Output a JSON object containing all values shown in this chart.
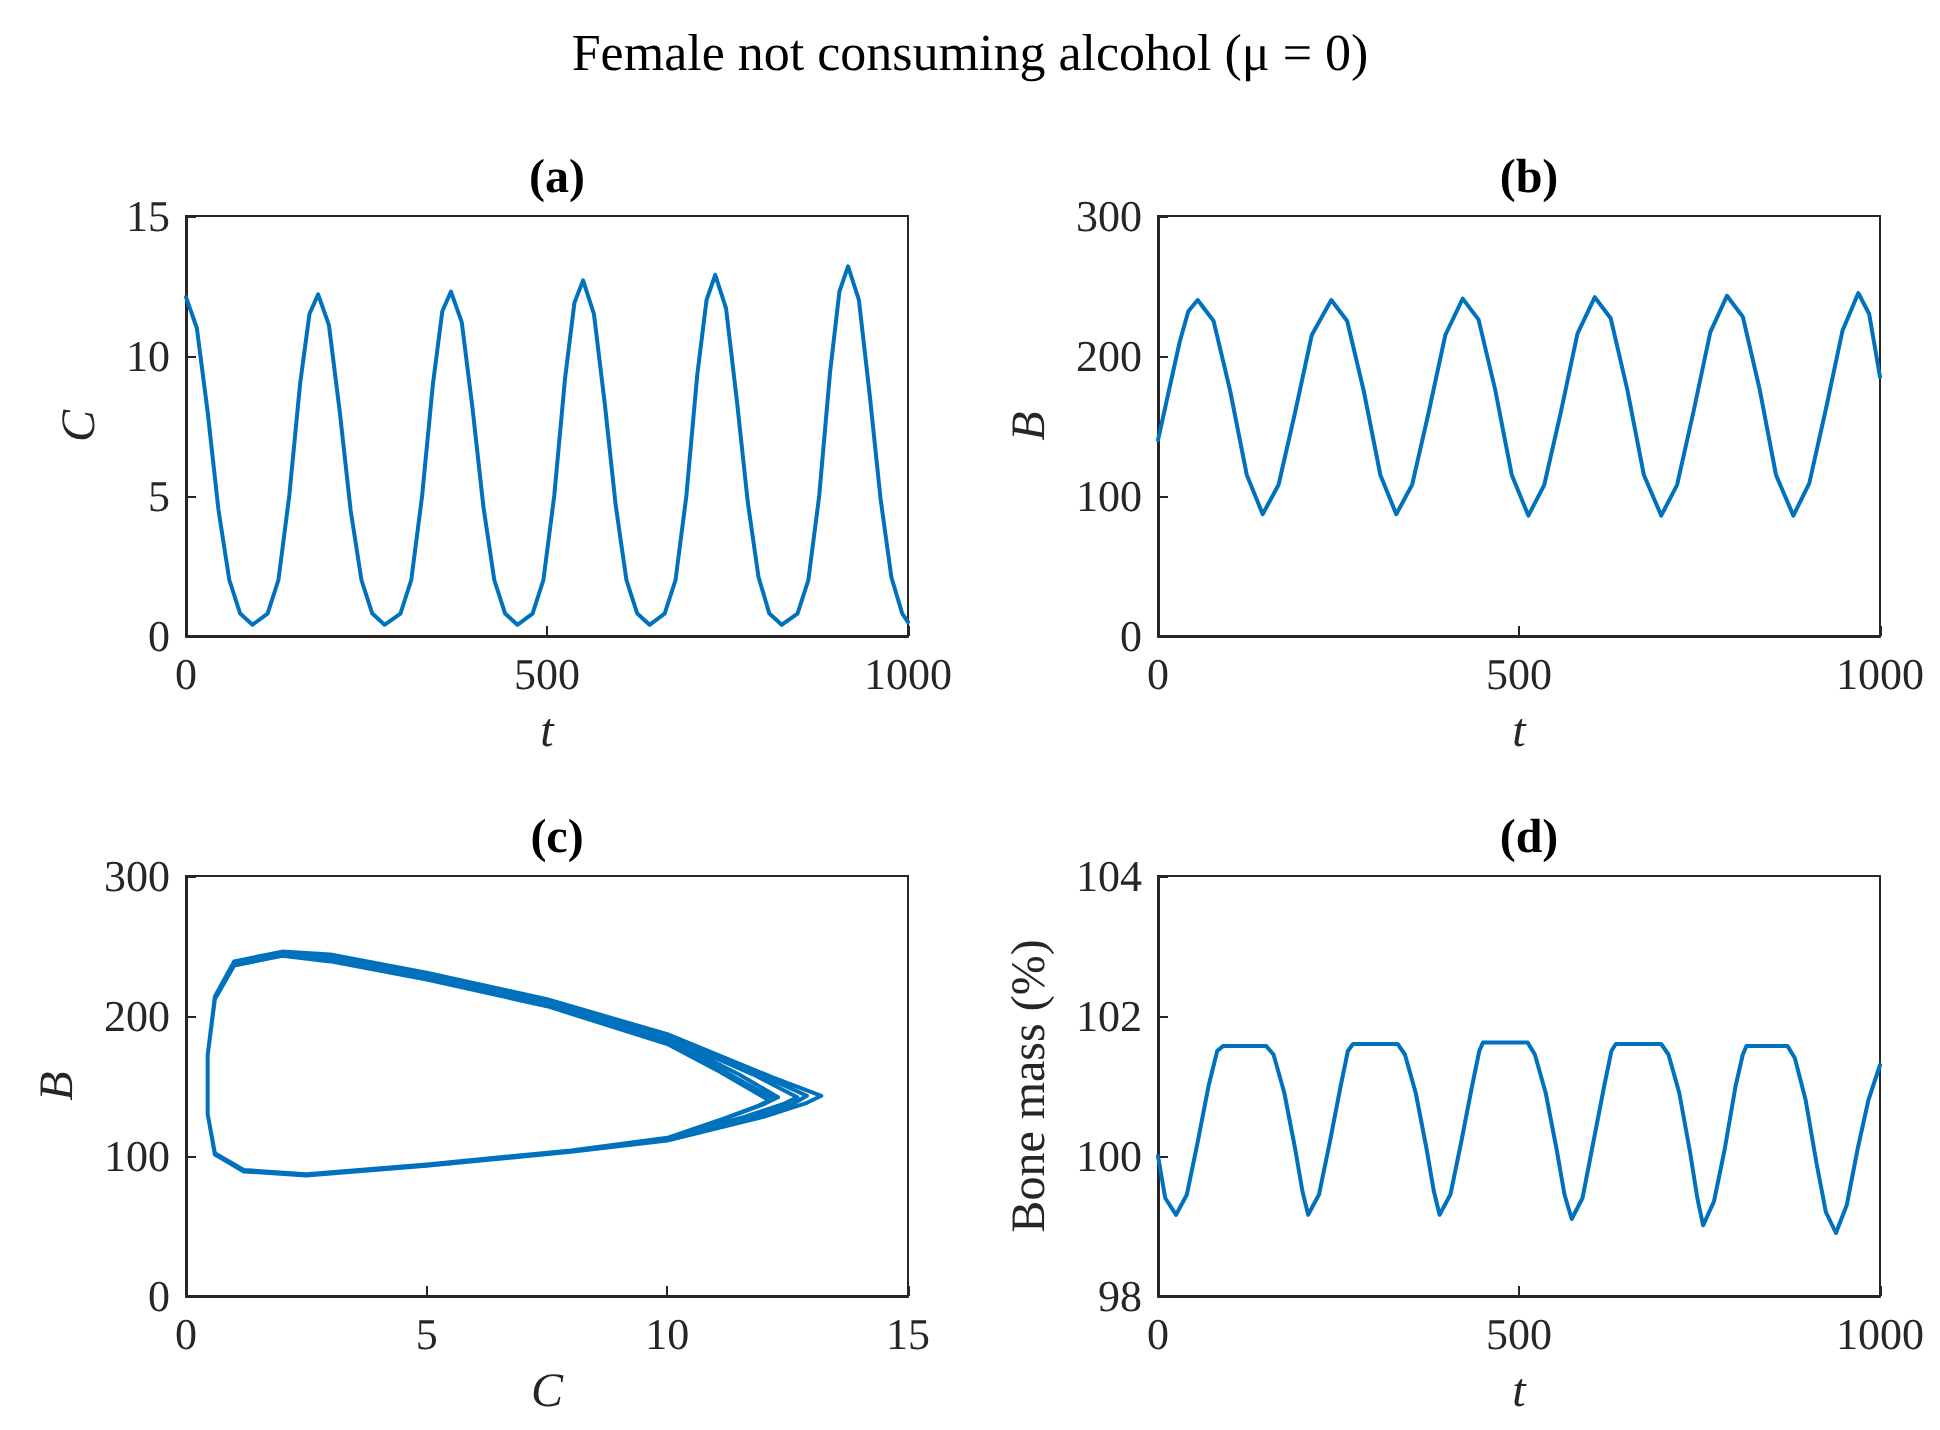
{
  "chart_data": [
    {
      "type": "line",
      "title": "Female not consuming alcohol (μ = 0)",
      "subtitle": "(a)",
      "xlabel": "t",
      "ylabel": "C",
      "color": "#0072bd",
      "xlim": [
        0,
        1000
      ],
      "xticks": [
        0,
        500,
        1000
      ],
      "ylim": [
        0,
        15
      ],
      "yticks": [
        0,
        5,
        10,
        15
      ],
      "grid": false,
      "x": [
        0,
        15,
        30,
        45,
        60,
        75,
        92,
        113,
        128,
        143,
        158,
        171,
        183,
        198,
        213,
        228,
        243,
        258,
        275,
        297,
        312,
        327,
        342,
        355,
        367,
        382,
        397,
        412,
        427,
        442,
        459,
        480,
        495,
        510,
        525,
        538,
        550,
        565,
        580,
        595,
        610,
        625,
        642,
        663,
        678,
        693,
        708,
        721,
        733,
        748,
        763,
        778,
        793,
        808,
        825,
        847,
        862,
        877,
        892,
        905,
        917,
        932,
        947,
        962,
        977,
        992,
        1000
      ],
      "values": [
        12.1,
        11,
        8,
        4.5,
        2,
        0.8,
        0.4,
        0.8,
        2,
        5,
        9,
        11.5,
        12.2,
        11.1,
        8,
        4.5,
        2,
        0.8,
        0.4,
        0.8,
        2,
        5,
        9,
        11.6,
        12.3,
        11.2,
        8.1,
        4.6,
        2,
        0.8,
        0.4,
        0.8,
        2,
        5,
        9.2,
        11.9,
        12.7,
        11.5,
        8.3,
        4.7,
        2,
        0.8,
        0.4,
        0.8,
        2,
        5,
        9.3,
        12,
        12.9,
        11.7,
        8.4,
        4.8,
        2.1,
        0.8,
        0.4,
        0.8,
        2,
        5,
        9.4,
        12.3,
        13.2,
        12,
        8.6,
        4.9,
        2.1,
        0.8,
        0.5
      ]
    },
    {
      "type": "line",
      "title": "(b)",
      "xlabel": "t",
      "ylabel": "B",
      "color": "#0072bd",
      "xlim": [
        0,
        1000
      ],
      "xticks": [
        0,
        500,
        1000
      ],
      "ylim": [
        0,
        300
      ],
      "yticks": [
        0,
        100,
        200,
        300
      ],
      "grid": false,
      "x": [
        0,
        15,
        30,
        42,
        55,
        77,
        100,
        123,
        145,
        167,
        190,
        213,
        240,
        262,
        285,
        308,
        330,
        352,
        375,
        398,
        422,
        444,
        467,
        490,
        513,
        535,
        558,
        581,
        605,
        627,
        650,
        673,
        697,
        719,
        742,
        765,
        788,
        810,
        833,
        856,
        880,
        902,
        925,
        948,
        970,
        985,
        1000
      ],
      "values": [
        140,
        175,
        210,
        232,
        240,
        225,
        175,
        115,
        87,
        108,
        160,
        215,
        240,
        225,
        175,
        115,
        87,
        108,
        160,
        215,
        241,
        226,
        176,
        115,
        86,
        108,
        160,
        216,
        242,
        227,
        176,
        115,
        86,
        108,
        161,
        217,
        243,
        228,
        177,
        115,
        86,
        109,
        162,
        218,
        245,
        230,
        185
      ]
    },
    {
      "type": "line",
      "title": "(c)",
      "xlabel": "C",
      "ylabel": "B",
      "color": "#0072bd",
      "xlim": [
        0,
        15
      ],
      "xticks": [
        0,
        5,
        10,
        15
      ],
      "ylim": [
        0,
        300
      ],
      "yticks": [
        0,
        100,
        200,
        300
      ],
      "grid": false,
      "x": [
        12.1,
        11.1,
        10,
        7.5,
        5,
        3,
        2,
        1,
        0.6,
        0.45,
        0.45,
        0.6,
        1.2,
        2.5,
        5,
        8,
        10,
        11.2,
        11.9,
        12.2,
        11.2,
        10,
        7.5,
        5,
        3,
        2,
        1,
        0.6,
        0.45,
        0.45,
        0.6,
        1.2,
        2.5,
        5,
        8,
        10,
        11.3,
        12,
        12.3,
        11.5,
        10,
        7.5,
        5,
        3,
        2,
        1,
        0.6,
        0.45,
        0.45,
        0.6,
        1.2,
        2.5,
        5,
        8,
        10,
        11.6,
        12.4,
        12.7,
        11.8,
        10,
        7.5,
        5,
        3,
        2,
        1,
        0.6,
        0.45,
        0.45,
        0.6,
        1.2,
        2.5,
        5,
        8,
        10,
        11.8,
        12.6,
        12.9,
        12,
        10,
        7.5,
        5,
        3,
        2,
        1,
        0.6,
        0.45,
        0.45,
        0.6,
        1.2,
        2.5,
        5,
        8,
        10,
        12,
        12.9,
        13.2,
        12.2,
        10,
        7.5,
        5,
        3,
        2,
        1,
        0.6,
        0.5
      ],
      "values": [
        140,
        160,
        180,
        207,
        226,
        239,
        243,
        236,
        212,
        172,
        130,
        102,
        90,
        87,
        94,
        104,
        113,
        127,
        136,
        141,
        160,
        182,
        208,
        227,
        240,
        244,
        237,
        212,
        172,
        130,
        102,
        90,
        87,
        94,
        104,
        113,
        128,
        137,
        142,
        158,
        184,
        209,
        228,
        241,
        245,
        238,
        213,
        172,
        130,
        102,
        89,
        87,
        93,
        103,
        112,
        128,
        137,
        142,
        158,
        185,
        210,
        229,
        242,
        245,
        238,
        213,
        172,
        130,
        102,
        89,
        87,
        93,
        103,
        112,
        128,
        137,
        143,
        157,
        186,
        211,
        230,
        243,
        246,
        239,
        214,
        172,
        130,
        101,
        89,
        86,
        93,
        103,
        111,
        128,
        138,
        143,
        156,
        187,
        212,
        231,
        244,
        246,
        239,
        214,
        185
      ]
    },
    {
      "type": "line",
      "title": "(d)",
      "xlabel": "t",
      "ylabel": "Bone mass (%)",
      "color": "#0072bd",
      "xlim": [
        0,
        1000
      ],
      "xticks": [
        0,
        500,
        1000
      ],
      "ylim": [
        98,
        104
      ],
      "yticks": [
        98,
        100,
        102,
        104
      ],
      "grid": false,
      "x": [
        0,
        10,
        25,
        40,
        55,
        70,
        82,
        90,
        150,
        160,
        175,
        190,
        200,
        208,
        223,
        238,
        253,
        263,
        270,
        332,
        342,
        357,
        372,
        382,
        390,
        405,
        420,
        435,
        445,
        450,
        512,
        522,
        537,
        552,
        563,
        573,
        588,
        603,
        618,
        628,
        634,
        697,
        707,
        722,
        737,
        747,
        755,
        770,
        785,
        800,
        810,
        815,
        872,
        882,
        897,
        912,
        925,
        939,
        954,
        969,
        984,
        1000
      ],
      "values": [
        100,
        99.4,
        99.16,
        99.45,
        100.2,
        101,
        101.5,
        101.57,
        101.57,
        101.45,
        100.9,
        100.1,
        99.5,
        99.16,
        99.45,
        100.2,
        101,
        101.5,
        101.6,
        101.6,
        101.45,
        100.9,
        100.1,
        99.5,
        99.16,
        99.45,
        100.2,
        101,
        101.5,
        101.62,
        101.62,
        101.45,
        100.9,
        100.1,
        99.45,
        99.1,
        99.4,
        100.2,
        101,
        101.5,
        101.6,
        101.6,
        101.45,
        100.9,
        100.05,
        99.4,
        99.01,
        99.35,
        100.1,
        101,
        101.45,
        101.57,
        101.57,
        101.4,
        100.8,
        99.9,
        99.2,
        98.9,
        99.3,
        100.1,
        100.8,
        101.3
      ]
    }
  ]
}
